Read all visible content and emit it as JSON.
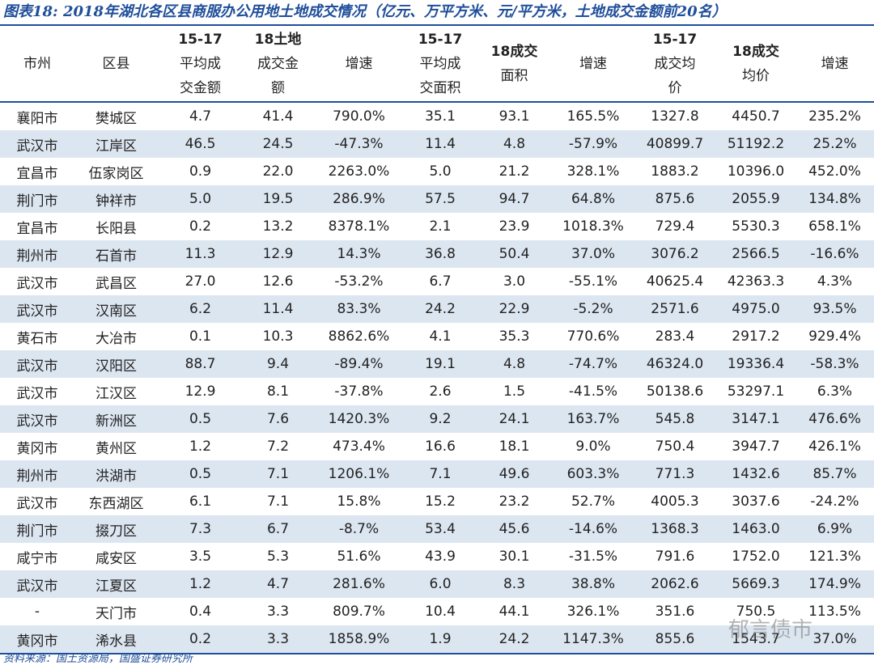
{
  "title": "图表18: 2018年湖北各区县商服办公用地土地成交情况（亿元、万平方米、元/平方米，土地成交金额前20名）",
  "table": {
    "header": [
      [
        "市州"
      ],
      [
        "区县"
      ],
      [
        "15-17",
        "平均成",
        "交金额"
      ],
      [
        "18土地",
        "成交金",
        "额"
      ],
      [
        "增速"
      ],
      [
        "15-17",
        "平均成",
        "交面积"
      ],
      [
        "18成交",
        "面积"
      ],
      [
        "增速"
      ],
      [
        "15-17",
        "成交均",
        "价"
      ],
      [
        "18成交",
        "均价"
      ],
      [
        "增速"
      ]
    ],
    "rows": [
      [
        "襄阳市",
        "樊城区",
        "4.7",
        "41.4",
        "790.0%",
        "35.1",
        "93.1",
        "165.5%",
        "1327.8",
        "4450.7",
        "235.2%"
      ],
      [
        "武汉市",
        "江岸区",
        "46.5",
        "24.5",
        "-47.3%",
        "11.4",
        "4.8",
        "-57.9%",
        "40899.7",
        "51192.2",
        "25.2%"
      ],
      [
        "宜昌市",
        "伍家岗区",
        "0.9",
        "22.0",
        "2263.0%",
        "5.0",
        "21.2",
        "328.1%",
        "1883.2",
        "10396.0",
        "452.0%"
      ],
      [
        "荆门市",
        "钟祥市",
        "5.0",
        "19.5",
        "286.9%",
        "57.5",
        "94.7",
        "64.8%",
        "875.6",
        "2055.9",
        "134.8%"
      ],
      [
        "宜昌市",
        "长阳县",
        "0.2",
        "13.2",
        "8378.1%",
        "2.1",
        "23.9",
        "1018.3%",
        "729.4",
        "5530.3",
        "658.1%"
      ],
      [
        "荆州市",
        "石首市",
        "11.3",
        "12.9",
        "14.3%",
        "36.8",
        "50.4",
        "37.0%",
        "3076.2",
        "2566.5",
        "-16.6%"
      ],
      [
        "武汉市",
        "武昌区",
        "27.0",
        "12.6",
        "-53.2%",
        "6.7",
        "3.0",
        "-55.1%",
        "40625.4",
        "42363.3",
        "4.3%"
      ],
      [
        "武汉市",
        "汉南区",
        "6.2",
        "11.4",
        "83.3%",
        "24.2",
        "22.9",
        "-5.2%",
        "2571.6",
        "4975.0",
        "93.5%"
      ],
      [
        "黄石市",
        "大冶市",
        "0.1",
        "10.3",
        "8862.6%",
        "4.1",
        "35.3",
        "770.6%",
        "283.4",
        "2917.2",
        "929.4%"
      ],
      [
        "武汉市",
        "汉阳区",
        "88.7",
        "9.4",
        "-89.4%",
        "19.1",
        "4.8",
        "-74.7%",
        "46324.0",
        "19336.4",
        "-58.3%"
      ],
      [
        "武汉市",
        "江汉区",
        "12.9",
        "8.1",
        "-37.8%",
        "2.6",
        "1.5",
        "-41.5%",
        "50138.6",
        "53297.1",
        "6.3%"
      ],
      [
        "武汉市",
        "新洲区",
        "0.5",
        "7.6",
        "1420.3%",
        "9.2",
        "24.1",
        "163.7%",
        "545.8",
        "3147.1",
        "476.6%"
      ],
      [
        "黄冈市",
        "黄州区",
        "1.2",
        "7.2",
        "473.4%",
        "16.6",
        "18.1",
        "9.0%",
        "750.4",
        "3947.7",
        "426.1%"
      ],
      [
        "荆州市",
        "洪湖市",
        "0.5",
        "7.1",
        "1206.1%",
        "7.1",
        "49.6",
        "603.3%",
        "771.3",
        "1432.6",
        "85.7%"
      ],
      [
        "武汉市",
        "东西湖区",
        "6.1",
        "7.1",
        "15.8%",
        "15.2",
        "23.2",
        "52.7%",
        "4005.3",
        "3037.6",
        "-24.2%"
      ],
      [
        "荆门市",
        "掇刀区",
        "7.3",
        "6.7",
        "-8.7%",
        "53.4",
        "45.6",
        "-14.6%",
        "1368.3",
        "1463.0",
        "6.9%"
      ],
      [
        "咸宁市",
        "咸安区",
        "3.5",
        "5.3",
        "51.6%",
        "43.9",
        "30.1",
        "-31.5%",
        "791.6",
        "1752.0",
        "121.3%"
      ],
      [
        "武汉市",
        "江夏区",
        "1.2",
        "4.7",
        "281.6%",
        "6.0",
        "8.3",
        "38.8%",
        "2062.6",
        "5669.3",
        "174.9%"
      ],
      [
        "-",
        "天门市",
        "0.4",
        "3.3",
        "809.7%",
        "10.4",
        "44.1",
        "326.1%",
        "351.6",
        "750.5",
        "113.5%"
      ],
      [
        "黄冈市",
        "浠水县",
        "0.2",
        "3.3",
        "1858.9%",
        "1.9",
        "24.2",
        "1147.3%",
        "855.6",
        "1543.7",
        "37.0%"
      ]
    ]
  },
  "source": "资料来源：国土资源局，国盛证券研究所",
  "watermark": "郁言债市"
}
